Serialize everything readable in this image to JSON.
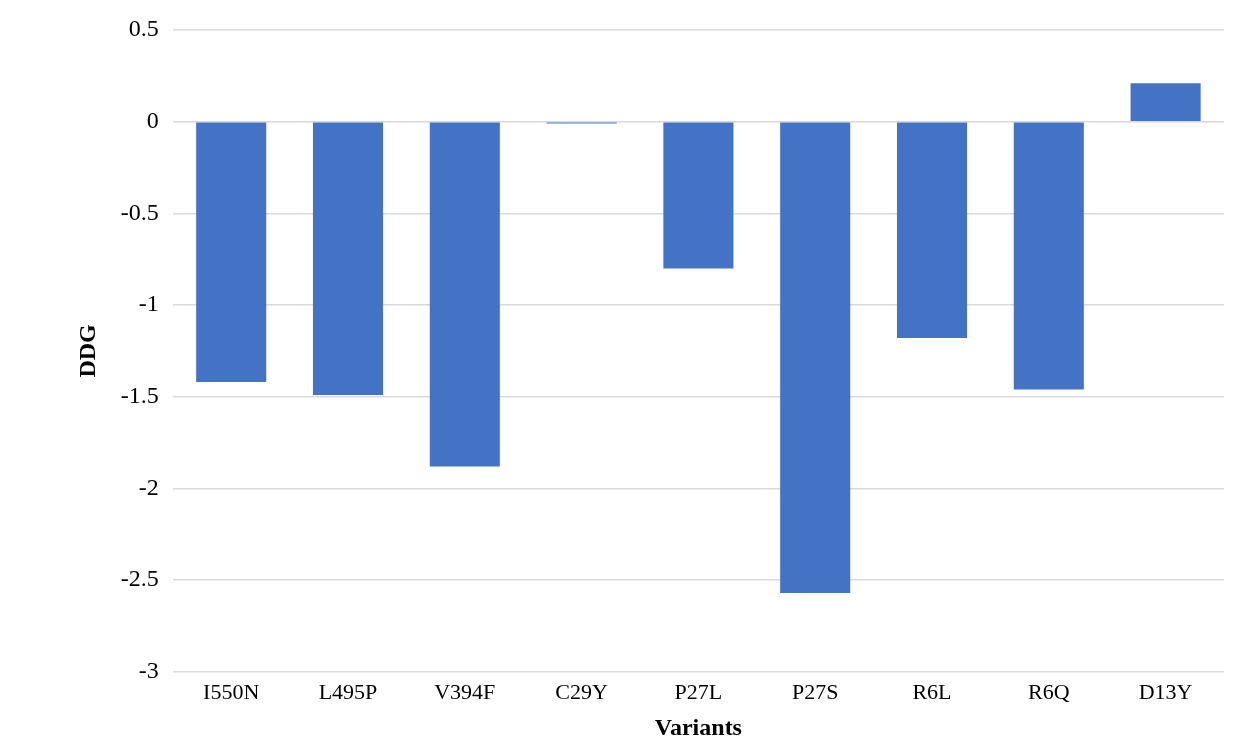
{
  "chart_data": {
    "type": "bar",
    "xlabel": "Variants",
    "ylabel": "DDG",
    "categories": [
      "I550N",
      "L495P",
      "V394F",
      "C29Y",
      "P27L",
      "P27S",
      "R6L",
      "R6Q",
      "D13Y"
    ],
    "values": [
      -1.42,
      -1.49,
      -1.88,
      -0.01,
      -0.8,
      -2.57,
      -1.18,
      -1.46,
      0.21
    ],
    "color": "#4472c4",
    "ylim": [
      -3,
      0.5
    ],
    "yticks": [
      {
        "value": -3,
        "label": "-3"
      },
      {
        "value": -2.5,
        "label": "-2.5"
      },
      {
        "value": -2,
        "label": "-2"
      },
      {
        "value": -1.5,
        "label": "-1.5"
      },
      {
        "value": -1,
        "label": "-1"
      },
      {
        "value": -0.5,
        "label": "-0.5"
      },
      0,
      0.5
    ],
    "grid": "y"
  }
}
